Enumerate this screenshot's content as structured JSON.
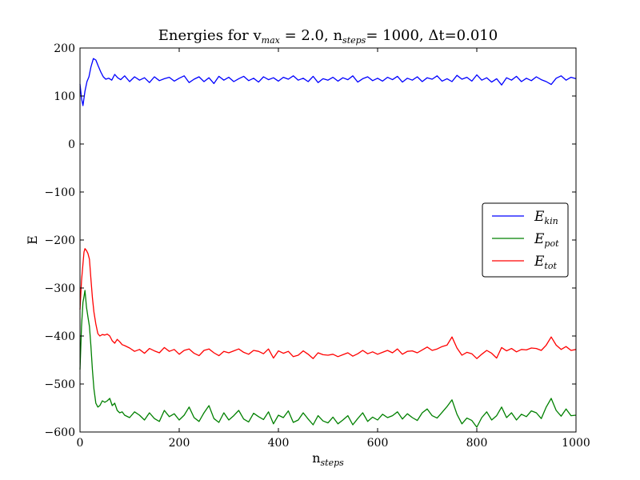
{
  "chart_data": {
    "type": "line",
    "title": {
      "prefix": "Energies for v",
      "prefix_sub": "max",
      "middle": " = 2.0, n",
      "middle_sub": "steps",
      "suffix": "= 1000, Δt=0.010"
    },
    "xlabel": {
      "main": "n",
      "sub": "steps"
    },
    "ylabel": "E",
    "xlim": [
      0,
      1000
    ],
    "ylim": [
      -600,
      200
    ],
    "xticks": [
      0,
      200,
      400,
      600,
      800,
      1000
    ],
    "xtick_labels": [
      "0",
      "200",
      "400",
      "600",
      "800",
      "1000"
    ],
    "yticks": [
      200,
      100,
      0,
      -100,
      -200,
      -300,
      -400,
      -500,
      -600
    ],
    "ytick_labels": [
      "200",
      "100",
      "0",
      "−100",
      "−200",
      "−300",
      "−400",
      "−500",
      "−600"
    ],
    "grid": false,
    "legend_position": "right",
    "series": [
      {
        "name": "E_kin",
        "label_main": "E",
        "label_sub": "kin",
        "color": "#0000ff",
        "x": [
          0,
          3,
          6,
          10,
          14,
          18,
          22,
          27,
          32,
          37,
          42,
          47,
          52,
          58,
          64,
          70,
          76,
          82,
          90,
          100,
          110,
          120,
          130,
          140,
          150,
          160,
          170,
          180,
          190,
          200,
          210,
          220,
          230,
          240,
          250,
          260,
          270,
          280,
          290,
          300,
          310,
          320,
          330,
          340,
          350,
          360,
          370,
          380,
          390,
          400,
          410,
          420,
          430,
          440,
          450,
          460,
          470,
          480,
          490,
          500,
          510,
          520,
          530,
          540,
          550,
          560,
          570,
          580,
          590,
          600,
          610,
          620,
          630,
          640,
          650,
          660,
          670,
          680,
          690,
          700,
          710,
          720,
          730,
          740,
          750,
          760,
          770,
          780,
          790,
          800,
          810,
          820,
          830,
          840,
          850,
          860,
          870,
          880,
          890,
          900,
          910,
          920,
          930,
          940,
          950,
          960,
          970,
          980,
          990,
          1000
        ],
        "values": [
          125,
          95,
          80,
          110,
          130,
          140,
          160,
          178,
          175,
          162,
          150,
          140,
          135,
          137,
          133,
          145,
          138,
          134,
          142,
          130,
          140,
          133,
          138,
          128,
          140,
          132,
          136,
          139,
          131,
          137,
          142,
          128,
          135,
          140,
          130,
          138,
          126,
          141,
          133,
          139,
          130,
          136,
          141,
          132,
          137,
          129,
          140,
          134,
          138,
          131,
          139,
          135,
          142,
          133,
          137,
          130,
          141,
          128,
          136,
          133,
          139,
          131,
          138,
          134,
          142,
          129,
          136,
          140,
          132,
          137,
          131,
          139,
          134,
          141,
          129,
          137,
          133,
          140,
          130,
          138,
          135,
          142,
          131,
          136,
          130,
          143,
          135,
          139,
          131,
          144,
          133,
          138,
          129,
          136,
          123,
          138,
          133,
          141,
          130,
          137,
          132,
          140,
          134,
          130,
          124,
          137,
          142,
          133,
          139,
          136
        ]
      },
      {
        "name": "E_pot",
        "label_main": "E",
        "label_sub": "pot",
        "color": "#008000",
        "x": [
          0,
          3,
          6,
          8,
          10,
          13,
          16,
          19,
          22,
          25,
          28,
          32,
          36,
          40,
          45,
          50,
          55,
          60,
          65,
          70,
          75,
          80,
          85,
          90,
          100,
          110,
          120,
          130,
          140,
          150,
          160,
          170,
          180,
          190,
          200,
          210,
          220,
          230,
          240,
          250,
          260,
          270,
          280,
          290,
          300,
          310,
          320,
          330,
          340,
          350,
          360,
          370,
          380,
          390,
          400,
          410,
          420,
          430,
          440,
          450,
          460,
          470,
          480,
          490,
          500,
          510,
          520,
          530,
          540,
          550,
          560,
          570,
          580,
          590,
          600,
          610,
          620,
          630,
          640,
          650,
          660,
          670,
          680,
          690,
          700,
          710,
          720,
          730,
          740,
          750,
          760,
          770,
          780,
          790,
          800,
          810,
          820,
          830,
          840,
          850,
          860,
          870,
          880,
          890,
          900,
          910,
          920,
          930,
          940,
          950,
          960,
          970,
          980,
          990,
          1000
        ],
        "values": [
          -470,
          -380,
          -330,
          -318,
          -305,
          -340,
          -360,
          -380,
          -420,
          -470,
          -510,
          -540,
          -548,
          -545,
          -535,
          -538,
          -535,
          -530,
          -545,
          -540,
          -555,
          -560,
          -558,
          -565,
          -570,
          -558,
          -565,
          -575,
          -560,
          -572,
          -578,
          -555,
          -568,
          -562,
          -575,
          -565,
          -548,
          -570,
          -578,
          -560,
          -545,
          -572,
          -580,
          -560,
          -575,
          -566,
          -555,
          -573,
          -579,
          -561,
          -568,
          -574,
          -558,
          -583,
          -565,
          -570,
          -556,
          -580,
          -575,
          -560,
          -573,
          -585,
          -566,
          -577,
          -581,
          -569,
          -583,
          -575,
          -566,
          -585,
          -572,
          -560,
          -578,
          -569,
          -575,
          -563,
          -570,
          -566,
          -558,
          -573,
          -562,
          -570,
          -576,
          -560,
          -552,
          -566,
          -571,
          -559,
          -547,
          -533,
          -563,
          -583,
          -571,
          -576,
          -590,
          -570,
          -558,
          -575,
          -566,
          -548,
          -570,
          -560,
          -575,
          -563,
          -568,
          -556,
          -560,
          -572,
          -548,
          -530,
          -555,
          -567,
          -552,
          -566,
          -565
        ]
      },
      {
        "name": "E_tot",
        "label_main": "E",
        "label_sub": "tot",
        "color": "#ff0000",
        "x": [
          0,
          3,
          6,
          8,
          10,
          13,
          16,
          19,
          22,
          25,
          28,
          32,
          36,
          40,
          45,
          50,
          55,
          60,
          65,
          70,
          75,
          80,
          85,
          90,
          100,
          110,
          120,
          130,
          140,
          150,
          160,
          170,
          180,
          190,
          200,
          210,
          220,
          230,
          240,
          250,
          260,
          270,
          280,
          290,
          300,
          310,
          320,
          330,
          340,
          350,
          360,
          370,
          380,
          390,
          400,
          410,
          420,
          430,
          440,
          450,
          460,
          470,
          480,
          490,
          500,
          510,
          520,
          530,
          540,
          550,
          560,
          570,
          580,
          590,
          600,
          610,
          620,
          630,
          640,
          650,
          660,
          670,
          680,
          690,
          700,
          710,
          720,
          730,
          740,
          750,
          760,
          770,
          780,
          790,
          800,
          810,
          820,
          830,
          840,
          850,
          860,
          870,
          880,
          890,
          900,
          910,
          920,
          930,
          940,
          950,
          960,
          970,
          980,
          990,
          1000
        ],
        "values": [
          -345,
          -285,
          -250,
          -225,
          -218,
          -222,
          -228,
          -240,
          -280,
          -320,
          -350,
          -375,
          -395,
          -400,
          -397,
          -398,
          -396,
          -400,
          -410,
          -415,
          -407,
          -412,
          -418,
          -420,
          -425,
          -432,
          -428,
          -436,
          -426,
          -431,
          -435,
          -424,
          -432,
          -428,
          -438,
          -430,
          -427,
          -436,
          -441,
          -430,
          -427,
          -435,
          -441,
          -432,
          -435,
          -431,
          -427,
          -434,
          -438,
          -430,
          -432,
          -437,
          -427,
          -446,
          -431,
          -436,
          -432,
          -443,
          -440,
          -431,
          -438,
          -447,
          -435,
          -439,
          -440,
          -438,
          -443,
          -439,
          -435,
          -442,
          -437,
          -430,
          -437,
          -433,
          -438,
          -434,
          -430,
          -435,
          -427,
          -438,
          -432,
          -431,
          -435,
          -429,
          -423,
          -430,
          -427,
          -422,
          -419,
          -402,
          -425,
          -440,
          -434,
          -437,
          -447,
          -438,
          -430,
          -436,
          -446,
          -424,
          -431,
          -426,
          -433,
          -428,
          -429,
          -425,
          -426,
          -430,
          -419,
          -402,
          -419,
          -428,
          -422,
          -430,
          -428
        ]
      }
    ]
  }
}
